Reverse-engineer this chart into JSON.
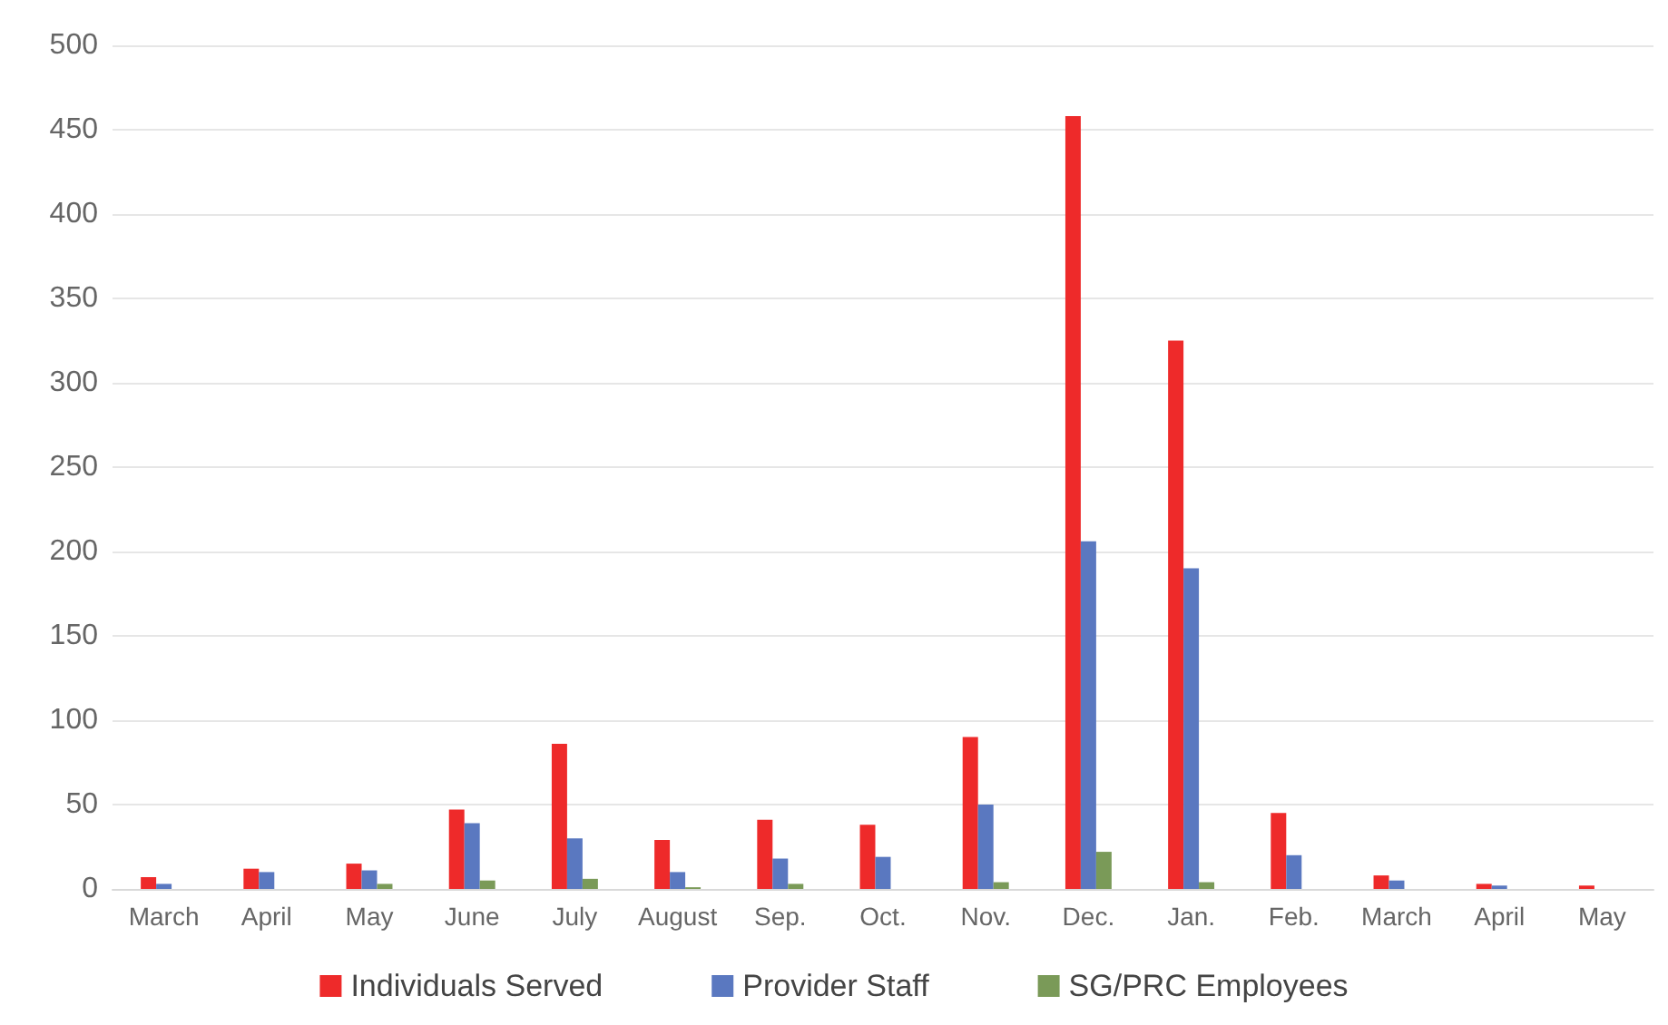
{
  "chart_data": {
    "type": "bar",
    "categories": [
      "March",
      "April",
      "May",
      "June",
      "July",
      "August",
      "Sep.",
      "Oct.",
      "Nov.",
      "Dec.",
      "Jan.",
      "Feb.",
      "March",
      "April",
      "May"
    ],
    "series": [
      {
        "name": "Individuals Served",
        "color": "#ee2a2a",
        "values": [
          7,
          12,
          15,
          47,
          86,
          29,
          41,
          38,
          90,
          458,
          325,
          45,
          8,
          3,
          2
        ]
      },
      {
        "name": "Provider Staff",
        "color": "#5a78c0",
        "values": [
          3,
          10,
          11,
          39,
          30,
          10,
          18,
          19,
          50,
          206,
          190,
          20,
          5,
          2,
          0
        ]
      },
      {
        "name": "SG/PRC Employees",
        "color": "#7a9a58",
        "values": [
          0,
          0,
          3,
          5,
          6,
          1,
          3,
          0,
          4,
          22,
          4,
          0,
          0,
          0,
          0
        ]
      }
    ],
    "ylim": [
      0,
      500
    ],
    "yticks": [
      0,
      50,
      100,
      150,
      200,
      250,
      300,
      350,
      400,
      450,
      500
    ],
    "grid": "y",
    "legend": "bottom"
  }
}
